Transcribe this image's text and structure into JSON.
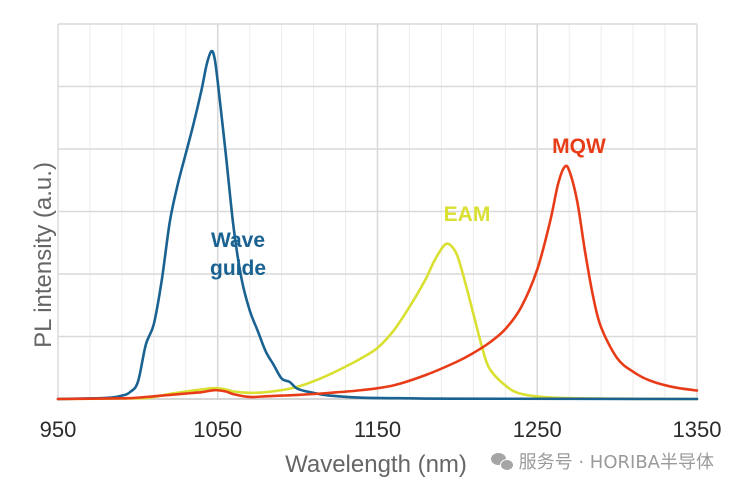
{
  "chart_data": {
    "type": "line",
    "title": "",
    "xlabel": "Wavelength (nm)",
    "ylabel": "PL intensity  (a.u.)",
    "xlim": [
      950,
      1350
    ],
    "ylim": [
      0,
      1.1
    ],
    "xticks": [
      "950",
      "1050",
      "1150",
      "1250",
      "1350"
    ],
    "grid": true,
    "series": [
      {
        "name": "Wave guide",
        "label_lines": [
          "Wave",
          "guide"
        ],
        "color": "#1a6291",
        "points": [
          [
            950,
            0.0
          ],
          [
            980,
            0.003
          ],
          [
            990,
            0.01
          ],
          [
            995,
            0.02
          ],
          [
            1000,
            0.05
          ],
          [
            1005,
            0.16
          ],
          [
            1010,
            0.22
          ],
          [
            1015,
            0.35
          ],
          [
            1020,
            0.52
          ],
          [
            1025,
            0.63
          ],
          [
            1030,
            0.72
          ],
          [
            1035,
            0.81
          ],
          [
            1040,
            0.91
          ],
          [
            1043,
            0.98
          ],
          [
            1046,
            1.02
          ],
          [
            1048,
            1.0
          ],
          [
            1050,
            0.93
          ],
          [
            1055,
            0.72
          ],
          [
            1060,
            0.5
          ],
          [
            1065,
            0.35
          ],
          [
            1070,
            0.26
          ],
          [
            1075,
            0.2
          ],
          [
            1080,
            0.14
          ],
          [
            1085,
            0.1
          ],
          [
            1090,
            0.06
          ],
          [
            1095,
            0.05
          ],
          [
            1100,
            0.03
          ],
          [
            1110,
            0.018
          ],
          [
            1120,
            0.01
          ],
          [
            1140,
            0.004
          ],
          [
            1170,
            0.002
          ],
          [
            1200,
            0.001
          ],
          [
            1350,
            0.0
          ]
        ]
      },
      {
        "name": "EAM",
        "color": "#d9e031",
        "points": [
          [
            950,
            0.0
          ],
          [
            1000,
            0.002
          ],
          [
            1010,
            0.006
          ],
          [
            1020,
            0.015
          ],
          [
            1030,
            0.022
          ],
          [
            1040,
            0.028
          ],
          [
            1048,
            0.032
          ],
          [
            1055,
            0.028
          ],
          [
            1060,
            0.022
          ],
          [
            1070,
            0.018
          ],
          [
            1080,
            0.02
          ],
          [
            1090,
            0.026
          ],
          [
            1100,
            0.036
          ],
          [
            1110,
            0.052
          ],
          [
            1120,
            0.072
          ],
          [
            1130,
            0.095
          ],
          [
            1140,
            0.12
          ],
          [
            1150,
            0.15
          ],
          [
            1160,
            0.2
          ],
          [
            1170,
            0.27
          ],
          [
            1180,
            0.35
          ],
          [
            1185,
            0.4
          ],
          [
            1190,
            0.44
          ],
          [
            1193,
            0.455
          ],
          [
            1196,
            0.45
          ],
          [
            1200,
            0.42
          ],
          [
            1205,
            0.34
          ],
          [
            1210,
            0.25
          ],
          [
            1215,
            0.16
          ],
          [
            1220,
            0.09
          ],
          [
            1230,
            0.04
          ],
          [
            1240,
            0.015
          ],
          [
            1260,
            0.004
          ],
          [
            1300,
            0.001
          ],
          [
            1350,
            0.0
          ]
        ]
      },
      {
        "name": "MQW",
        "color": "#e83c18",
        "points": [
          [
            950,
            0.0
          ],
          [
            990,
            0.002
          ],
          [
            1000,
            0.004
          ],
          [
            1010,
            0.008
          ],
          [
            1020,
            0.012
          ],
          [
            1030,
            0.016
          ],
          [
            1040,
            0.02
          ],
          [
            1048,
            0.026
          ],
          [
            1055,
            0.022
          ],
          [
            1060,
            0.014
          ],
          [
            1070,
            0.006
          ],
          [
            1080,
            0.008
          ],
          [
            1090,
            0.01
          ],
          [
            1100,
            0.012
          ],
          [
            1120,
            0.018
          ],
          [
            1140,
            0.026
          ],
          [
            1160,
            0.04
          ],
          [
            1180,
            0.07
          ],
          [
            1200,
            0.11
          ],
          [
            1210,
            0.135
          ],
          [
            1220,
            0.165
          ],
          [
            1230,
            0.205
          ],
          [
            1240,
            0.27
          ],
          [
            1250,
            0.38
          ],
          [
            1258,
            0.52
          ],
          [
            1263,
            0.63
          ],
          [
            1267,
            0.68
          ],
          [
            1270,
            0.67
          ],
          [
            1275,
            0.58
          ],
          [
            1280,
            0.43
          ],
          [
            1285,
            0.3
          ],
          [
            1290,
            0.21
          ],
          [
            1300,
            0.12
          ],
          [
            1310,
            0.08
          ],
          [
            1320,
            0.055
          ],
          [
            1335,
            0.035
          ],
          [
            1350,
            0.025
          ]
        ]
      }
    ]
  },
  "watermark": {
    "text": "服务号 · HORIBA半导体",
    "icon": "wechat-icon"
  }
}
